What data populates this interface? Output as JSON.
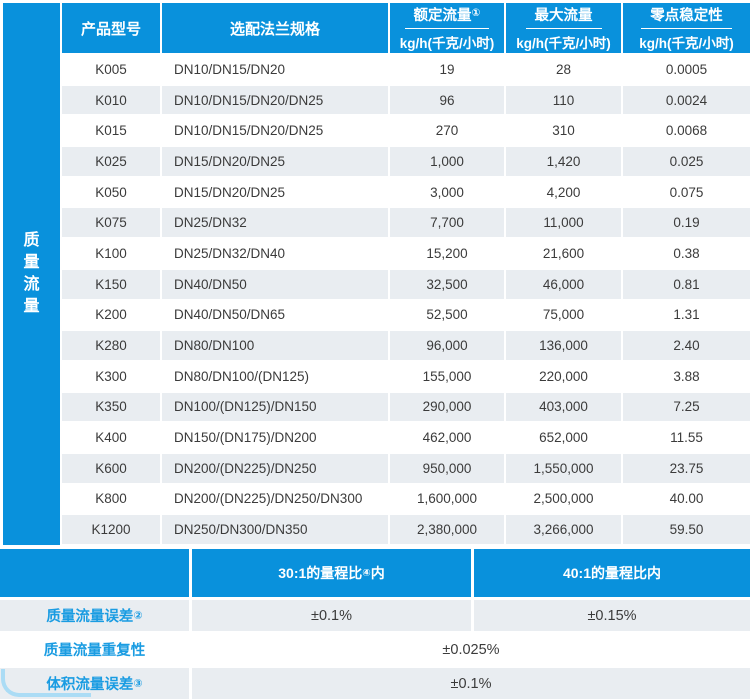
{
  "colors": {
    "accent_blue": "#0991dc",
    "row_stripe": "#e9edf1",
    "label_blue": "#1a9ce2",
    "text": "#3b3b3b",
    "corner_decoration": "#abdcf5"
  },
  "sidebar": {
    "label": "质量流量",
    "chars": [
      "质",
      "量",
      "流",
      "量"
    ]
  },
  "table": {
    "headers": {
      "model": "产品型号",
      "flange": "选配法兰规格",
      "rated": {
        "title": "额定流量",
        "sup": "①",
        "unit": "kg/h(千克/小时)"
      },
      "max": {
        "title": "最大流量",
        "sup": "",
        "unit": "kg/h(千克/小时)"
      },
      "zero": {
        "title": "零点稳定性",
        "sup": "",
        "unit": "kg/h(千克/小时)"
      }
    },
    "rows": [
      {
        "model": "K005",
        "flange": "DN10/DN15/DN20",
        "rated": "19",
        "max": "28",
        "zero": "0.0005"
      },
      {
        "model": "K010",
        "flange": "DN10/DN15/DN20/DN25",
        "rated": "96",
        "max": "110",
        "zero": "0.0024"
      },
      {
        "model": "K015",
        "flange": "DN10/DN15/DN20/DN25",
        "rated": "270",
        "max": "310",
        "zero": "0.0068"
      },
      {
        "model": "K025",
        "flange": "DN15/DN20/DN25",
        "rated": "1,000",
        "max": "1,420",
        "zero": "0.025"
      },
      {
        "model": "K050",
        "flange": "DN15/DN20/DN25",
        "rated": "3,000",
        "max": "4,200",
        "zero": "0.075"
      },
      {
        "model": "K075",
        "flange": "DN25/DN32",
        "rated": "7,700",
        "max": "11,000",
        "zero": "0.19"
      },
      {
        "model": "K100",
        "flange": "DN25/DN32/DN40",
        "rated": "15,200",
        "max": "21,600",
        "zero": "0.38"
      },
      {
        "model": "K150",
        "flange": "DN40/DN50",
        "rated": "32,500",
        "max": "46,000",
        "zero": "0.81"
      },
      {
        "model": "K200",
        "flange": "DN40/DN50/DN65",
        "rated": "52,500",
        "max": "75,000",
        "zero": "1.31"
      },
      {
        "model": "K280",
        "flange": "DN80/DN100",
        "rated": "96,000",
        "max": "136,000",
        "zero": "2.40"
      },
      {
        "model": "K300",
        "flange": "DN80/DN100/(DN125)",
        "rated": "155,000",
        "max": "220,000",
        "zero": "3.88"
      },
      {
        "model": "K350",
        "flange": "DN100/(DN125)/DN150",
        "rated": "290,000",
        "max": "403,000",
        "zero": "7.25"
      },
      {
        "model": "K400",
        "flange": "DN150/(DN175)/DN200",
        "rated": "462,000",
        "max": "652,000",
        "zero": "11.55"
      },
      {
        "model": "K600",
        "flange": "DN200/(DN225)/DN250",
        "rated": "950,000",
        "max": "1,550,000",
        "zero": "23.75"
      },
      {
        "model": "K800",
        "flange": "DN200/(DN225)/DN250/DN300",
        "rated": "1,600,000",
        "max": "2,500,000",
        "zero": "40.00"
      },
      {
        "model": "K1200",
        "flange": "DN250/DN300/DN350",
        "rated": "2,380,000",
        "max": "3,266,000",
        "zero": "59.50"
      }
    ]
  },
  "bottom": {
    "header": {
      "left": "",
      "mid_text": "30:1的量程比",
      "mid_sup": "④",
      "mid_suffix": "内",
      "right": "40:1的量程比内"
    },
    "rows": [
      {
        "label": "质量流量误差",
        "sup": "②",
        "values": [
          "±0.1%",
          "±0.15%"
        ]
      },
      {
        "label": "质量流量重复性",
        "sup": "",
        "values": [
          "±0.025%"
        ]
      },
      {
        "label": "体积流量误差",
        "sup": "③",
        "values": [
          "±0.1%"
        ]
      }
    ]
  }
}
